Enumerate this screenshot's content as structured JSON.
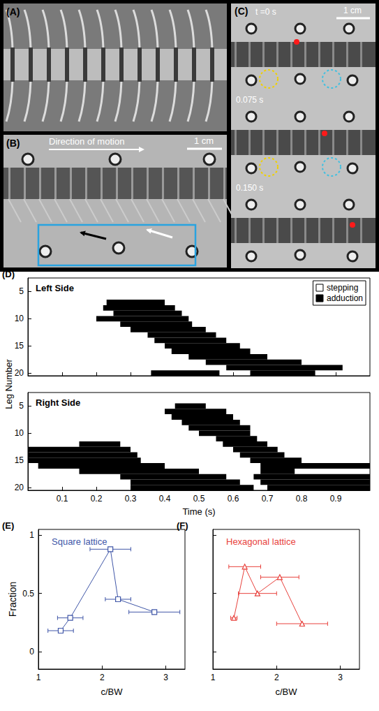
{
  "photo_panels": [
    {
      "label": "(A)"
    },
    {
      "label": "(B)",
      "annotation": "Direction of motion",
      "scale_bar": "1 cm"
    },
    {
      "label": "(C)",
      "scale_bar": "1 cm",
      "times": [
        "t =0 s",
        "0.075 s",
        "0.150 s"
      ]
    }
  ],
  "chart_data": [
    {
      "type": "raster",
      "label": "(D)",
      "title": "Left Side",
      "ylabel": "Leg Number",
      "xlim": [
        0,
        1
      ],
      "xticks": [
        0.1,
        0.2,
        0.3,
        0.4,
        0.5,
        0.6,
        0.7,
        0.8,
        0.9
      ],
      "ylim": [
        2.5,
        20.5
      ],
      "yticks": [
        5,
        10,
        15,
        20
      ],
      "tick_labels": "y",
      "legend": "upper right",
      "series": [
        {
          "name": "stepping",
          "color": "#ffffff",
          "values": []
        },
        {
          "name": "adduction",
          "color": "#000000",
          "values": [
            [
              7,
              0.23,
              0.4
            ],
            [
              8,
              0.22,
              0.43
            ],
            [
              9,
              0.25,
              0.45
            ],
            [
              10,
              0.2,
              0.47
            ],
            [
              11,
              0.27,
              0.48
            ],
            [
              12,
              0.3,
              0.52
            ],
            [
              13,
              0.35,
              0.55
            ],
            [
              14,
              0.37,
              0.58
            ],
            [
              15,
              0.4,
              0.62
            ],
            [
              16,
              0.42,
              0.65
            ],
            [
              17,
              0.47,
              0.7
            ],
            [
              18,
              0.52,
              0.8
            ],
            [
              19,
              0.58,
              0.92
            ],
            [
              20,
              0.36,
              0.56
            ],
            [
              20,
              0.65,
              0.84
            ]
          ]
        }
      ]
    },
    {
      "type": "raster",
      "title": "Right Side",
      "xlabel": "Time (s)",
      "xlim": [
        0,
        1
      ],
      "xticks": [
        0.1,
        0.2,
        0.3,
        0.4,
        0.5,
        0.6,
        0.7,
        0.8,
        0.9
      ],
      "ylim": [
        2.5,
        20.5
      ],
      "yticks": [
        5,
        10,
        15,
        20
      ],
      "series": [
        {
          "name": "adduction",
          "color": "#000000",
          "values": [
            [
              12,
              0.15,
              0.27
            ],
            [
              13,
              0,
              0.3
            ],
            [
              14,
              0,
              0.32
            ],
            [
              15,
              0,
              0.33
            ],
            [
              16,
              0.03,
              0.4
            ],
            [
              17,
              0.15,
              0.5
            ],
            [
              18,
              0.27,
              0.58
            ],
            [
              19,
              0.3,
              0.62
            ],
            [
              20,
              0.3,
              0.66
            ],
            [
              5,
              0.43,
              0.52
            ],
            [
              6,
              0.4,
              0.58
            ],
            [
              7,
              0.42,
              0.6
            ],
            [
              8,
              0.45,
              0.62
            ],
            [
              9,
              0.47,
              0.65
            ],
            [
              10,
              0.5,
              0.65
            ],
            [
              11,
              0.55,
              0.67
            ],
            [
              12,
              0.57,
              0.7
            ],
            [
              13,
              0.6,
              0.73
            ],
            [
              14,
              0.62,
              0.75
            ],
            [
              15,
              0.65,
              0.8
            ],
            [
              16,
              0.68,
              1
            ],
            [
              17,
              0.68,
              0.78
            ],
            [
              18,
              0.66,
              1
            ],
            [
              19,
              0.68,
              1
            ],
            [
              20,
              0.7,
              1
            ]
          ]
        }
      ]
    },
    {
      "type": "line",
      "label": "(E)",
      "title": "Square lattice",
      "xlabel": "c/BW",
      "ylabel": "Fraction",
      "color": "#4057a8",
      "marker": "square",
      "x": [
        1.35,
        1.5,
        2.13,
        2.25,
        2.82
      ],
      "values": [
        0.18,
        0.29,
        0.88,
        0.45,
        0.34
      ],
      "xerr": [
        0.2,
        0.2,
        0.32,
        0.2,
        0.4
      ],
      "xlim": [
        1,
        3.3
      ],
      "xticks": [
        1,
        2,
        3
      ],
      "ylim": [
        -0.15,
        1.05
      ],
      "yticks": [
        0,
        0.5,
        1
      ]
    },
    {
      "type": "line",
      "label": "(F)",
      "title": "Hexagonal lattice",
      "xlabel": "c/BW",
      "color": "#e8413c",
      "marker": "triangle",
      "x": [
        1.33,
        1.5,
        1.7,
        2.05,
        2.4
      ],
      "values": [
        0.29,
        0.73,
        0.5,
        0.64,
        0.24
      ],
      "xerr": [
        0.05,
        0.25,
        0.3,
        0.3,
        0.4
      ],
      "xlim": [
        1,
        3.3
      ],
      "xticks": [
        1,
        2,
        3
      ],
      "ylim": [
        -0.15,
        1.05
      ],
      "yticks": [
        0,
        0.5,
        1
      ],
      "tick_labels": "x"
    }
  ]
}
